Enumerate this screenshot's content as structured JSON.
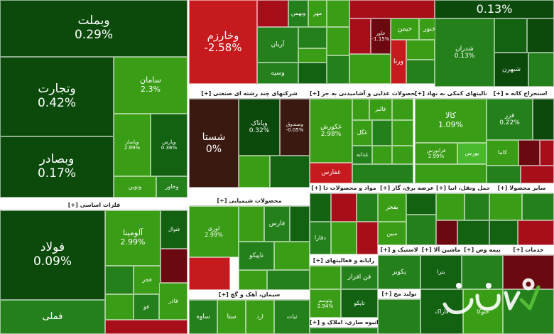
{
  "palette": {
    "g1": "#3a9d16",
    "g2": "#23801a",
    "g3": "#126212",
    "g4": "#0c4a0c",
    "lg": "#48b82c",
    "r1": "#a60f1a",
    "r2": "#c61a1e",
    "dr": "#6a0a10",
    "dk": "#3a1a10"
  },
  "sectors": [
    {
      "title": "[+] شرکتهای چند رشته ای صنعتی"
    },
    {
      "title": "[+] محصولات غذایی و آشامیدنی به جز"
    },
    {
      "title": "[+] فعالیتهای کمکی به نهاد"
    },
    {
      "title": "[+] استخراج کانه ه"
    },
    {
      "title": "[+] فلزات اساسی"
    },
    {
      "title": "[+] محصولات شیمیایی"
    },
    {
      "title": "[+] مواد و محصولات دا"
    },
    {
      "title": "[+] عرضه برق، گاز"
    },
    {
      "title": "[+] حمل ونقل، انبا"
    },
    {
      "title": "[+] سایر محصولا"
    },
    {
      "title": "[+] رایانه و فعالیتهای"
    },
    {
      "title": "[+] لاستیک و"
    },
    {
      "title": "[+] ماشین آلا"
    },
    {
      "title": "[+] بیمه وص"
    },
    {
      "title": "[+] خدمات"
    },
    {
      "title": "[+] سیمان، آهک و گچ"
    },
    {
      "title": "[+] تولید مح"
    },
    {
      "title": "[+] انبوه سازی، املاک و"
    }
  ],
  "tiles": [
    {
      "name": "وبملت",
      "pct": "0.29%"
    },
    {
      "name": "وخارزم",
      "pct": "-2.58%"
    },
    {
      "name": "وتجارت",
      "pct": "0.42%"
    },
    {
      "name": "وبصادر",
      "pct": "0.17%"
    },
    {
      "name": "سامان",
      "pct": "2.3%"
    },
    {
      "name": "وپاسار",
      "pct": "2.99%"
    },
    {
      "name": "وپارس",
      "pct": "0.36%"
    },
    {
      "name": "ونوین",
      "pct": ""
    },
    {
      "name": "وخاور",
      "pct": ""
    },
    {
      "name": "",
      "pct": "0.13%"
    },
    {
      "name": "شدران",
      "pct": "0.13%"
    },
    {
      "name": "شبهرن",
      "pct": ""
    },
    {
      "name": "وبهمن",
      "pct": ""
    },
    {
      "name": "آریان",
      "pct": ""
    },
    {
      "name": "وسپه",
      "pct": ""
    },
    {
      "name": "مهر",
      "pct": ""
    },
    {
      "name": "خیمن",
      "pct": ""
    },
    {
      "name": "خنور",
      "pct": ""
    },
    {
      "name": "ورنا",
      "pct": ""
    },
    {
      "name": "خاور",
      "pct": "-1.15%"
    },
    {
      "name": "شستا",
      "pct": "0%"
    },
    {
      "name": "وپاناک",
      "pct": "0.32%"
    },
    {
      "name": "وصندوق",
      "pct": "-0.05%"
    },
    {
      "name": "غکورش",
      "pct": "2.98%"
    },
    {
      "name": "غگل",
      "pct": ""
    },
    {
      "name": "غالبر",
      "pct": ""
    },
    {
      "name": "غدانه",
      "pct": ""
    },
    {
      "name": "غفارس",
      "pct": ""
    },
    {
      "name": "کالا",
      "pct": "1.09%"
    },
    {
      "name": "بورس",
      "pct": ""
    },
    {
      "name": "فرابورس",
      "pct": "2.99%"
    },
    {
      "name": "فزر",
      "pct": "0.22%"
    },
    {
      "name": "کاما",
      "pct": ""
    },
    {
      "name": "فولاد",
      "pct": "0.09%"
    },
    {
      "name": "فملی",
      "pct": ""
    },
    {
      "name": "فاذر",
      "pct": ""
    },
    {
      "name": "آلومینا",
      "pct": "2.99%"
    },
    {
      "name": "فنوال",
      "pct": ""
    },
    {
      "name": "فجر",
      "pct": ""
    },
    {
      "name": "فو",
      "pct": ""
    },
    {
      "name": "پارسان",
      "pct": ""
    },
    {
      "name": "لوری",
      "pct": "2.99%"
    },
    {
      "name": "فارس",
      "pct": ""
    },
    {
      "name": "تاپیکو",
      "pct": ""
    },
    {
      "name": "بفجر",
      "pct": ""
    },
    {
      "name": "مبین",
      "pct": ""
    },
    {
      "name": "دفارا",
      "pct": ""
    },
    {
      "name": "فن افزار",
      "pct": ""
    },
    {
      "name": "تاپکو",
      "pct": ""
    },
    {
      "name": "پکویر",
      "pct": ""
    },
    {
      "name": "ساوه",
      "pct": ""
    },
    {
      "name": "ستا",
      "pct": ""
    },
    {
      "name": "ارد",
      "pct": ""
    },
    {
      "name": "ثبات",
      "pct": ""
    },
    {
      "name": "فاراک",
      "pct": ""
    },
    {
      "name": "حتوکا",
      "pct": ""
    },
    {
      "name": "بترا",
      "pct": ""
    },
    {
      "name": "حفارس",
      "pct": ""
    },
    {
      "name": "وتوسم",
      "pct": "2.94%"
    },
    {
      "name": "شیراز",
      "pct": ""
    },
    {
      "name": "تپکو",
      "pct": ""
    }
  ]
}
